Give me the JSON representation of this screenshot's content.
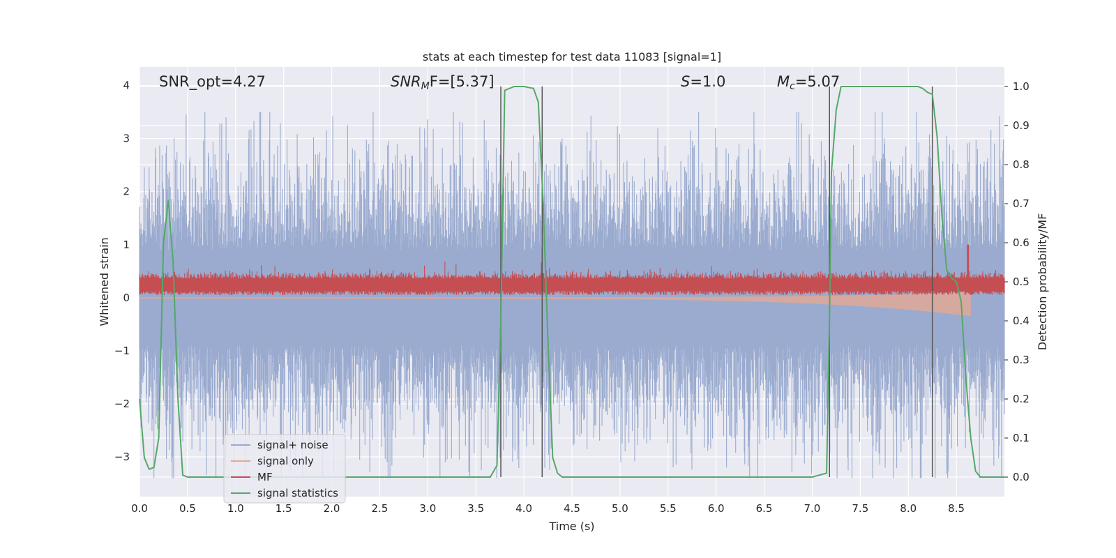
{
  "chart_data": {
    "type": "line",
    "title": "stats at each timestep for test data 11083 [signal=1]",
    "xlabel": "Time (s)",
    "ylabel": "Whitened strain",
    "ylabel_right": "Detection probability/MF",
    "xlim": [
      0.0,
      9.0
    ],
    "ylim": [
      -3.75,
      4.35
    ],
    "ylim_right": [
      -0.05,
      1.05
    ],
    "x_ticks": [
      "0.0",
      "0.5",
      "1.0",
      "1.5",
      "2.0",
      "2.5",
      "3.0",
      "3.5",
      "4.0",
      "4.5",
      "5.0",
      "5.5",
      "6.0",
      "6.5",
      "7.0",
      "7.5",
      "8.0",
      "8.5"
    ],
    "y_ticks": [
      "4",
      "3",
      "2",
      "1",
      "0",
      "−1",
      "−2",
      "−3"
    ],
    "y_ticks_right": [
      "1.0",
      "0.9",
      "0.8",
      "0.7",
      "0.6",
      "0.5",
      "0.4",
      "0.3",
      "0.2",
      "0.1",
      "0.0"
    ],
    "grid": true,
    "legend_position": "lower-left",
    "annotations": {
      "snr_opt": "SNR_opt=4.27",
      "snr_mf_base": "SNR",
      "snr_mf_sub": "M",
      "snr_mf_rest": "F=[5.37]",
      "s_italic": "S",
      "s_rest": "=1.0",
      "mc_base": "M",
      "mc_sub": "c",
      "mc_rest": "=5.07"
    },
    "vertical_lines_x": [
      3.76,
      4.19,
      7.18,
      8.25
    ],
    "series": [
      {
        "name": "signal+ noise",
        "color": "#9aabcf",
        "description_values": {
          "mean": 0.0,
          "std": 1.0,
          "approx_min": -3.4,
          "approx_max": 3.5
        }
      },
      {
        "name": "signal only",
        "color": "#e8a88f",
        "description_values": {
          "start_amplitude": 0.02,
          "end_amplitude": 0.35,
          "end_time": 8.65
        }
      },
      {
        "name": "MF",
        "color": "#c44e52",
        "description_values": {
          "mean": 0.25,
          "approx_max": 1.0
        }
      },
      {
        "name": "signal statistics",
        "color": "#55a868",
        "axis": "right",
        "x": [
          0.0,
          0.05,
          0.1,
          0.15,
          0.2,
          0.25,
          0.3,
          0.35,
          0.4,
          0.45,
          0.5,
          0.6,
          1.0,
          2.0,
          3.0,
          3.5,
          3.65,
          3.72,
          3.76,
          3.8,
          3.9,
          4.0,
          4.1,
          4.15,
          4.2,
          4.25,
          4.3,
          4.35,
          4.4,
          4.5,
          5.0,
          6.0,
          7.0,
          7.15,
          7.18,
          7.2,
          7.25,
          7.3,
          7.4,
          7.5,
          8.0,
          8.1,
          8.15,
          8.2,
          8.25,
          8.3,
          8.35,
          8.4,
          8.45,
          8.5,
          8.55,
          8.6,
          8.65,
          8.7,
          8.75,
          8.8,
          9.0
        ],
        "y": [
          0.2,
          0.05,
          0.02,
          0.025,
          0.1,
          0.6,
          0.71,
          0.55,
          0.2,
          0.005,
          0.0,
          0.0,
          0.0,
          0.0,
          0.0,
          0.0,
          0.0,
          0.03,
          0.4,
          0.99,
          1.0,
          1.0,
          0.995,
          0.96,
          0.7,
          0.35,
          0.05,
          0.01,
          0.0,
          0.0,
          0.0,
          0.0,
          0.0,
          0.01,
          0.4,
          0.78,
          0.94,
          1.0,
          1.0,
          1.0,
          1.0,
          1.0,
          0.995,
          0.985,
          0.98,
          0.87,
          0.67,
          0.53,
          0.51,
          0.5,
          0.45,
          0.25,
          0.1,
          0.015,
          0.0,
          0.0,
          0.0
        ]
      }
    ]
  }
}
